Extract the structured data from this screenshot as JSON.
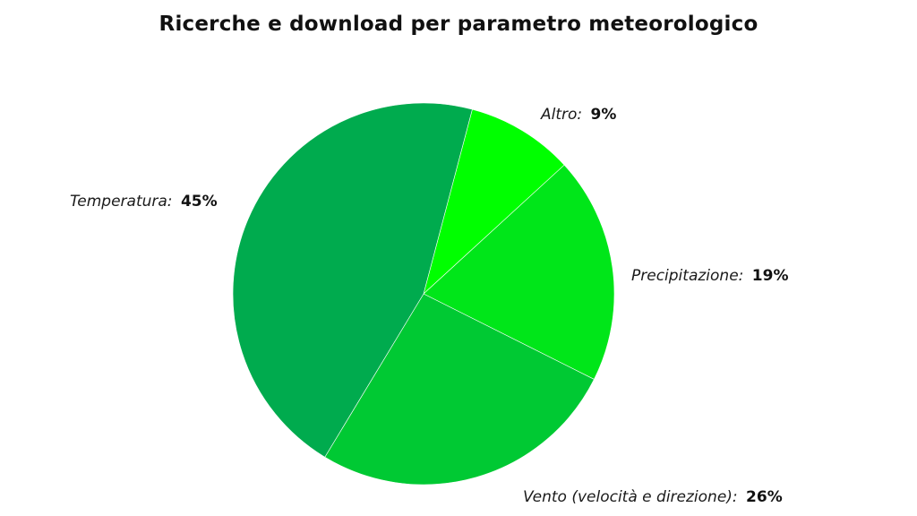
{
  "chart_data": {
    "type": "pie",
    "title": "Ricerche e download per parametro meteorologico",
    "slices": [
      {
        "label": "Altro:",
        "value": 9,
        "display": "9%",
        "color": "#00ff00"
      },
      {
        "label": "Precipitazione:",
        "value": 19,
        "display": "19%",
        "color": "#00e619"
      },
      {
        "label": "Vento (velocità e direzione):",
        "value": 26,
        "display": "26%",
        "color": "#00c933"
      },
      {
        "label": "Temperatura:",
        "value": 45,
        "display": "45%",
        "color": "#00ab4e"
      }
    ]
  }
}
